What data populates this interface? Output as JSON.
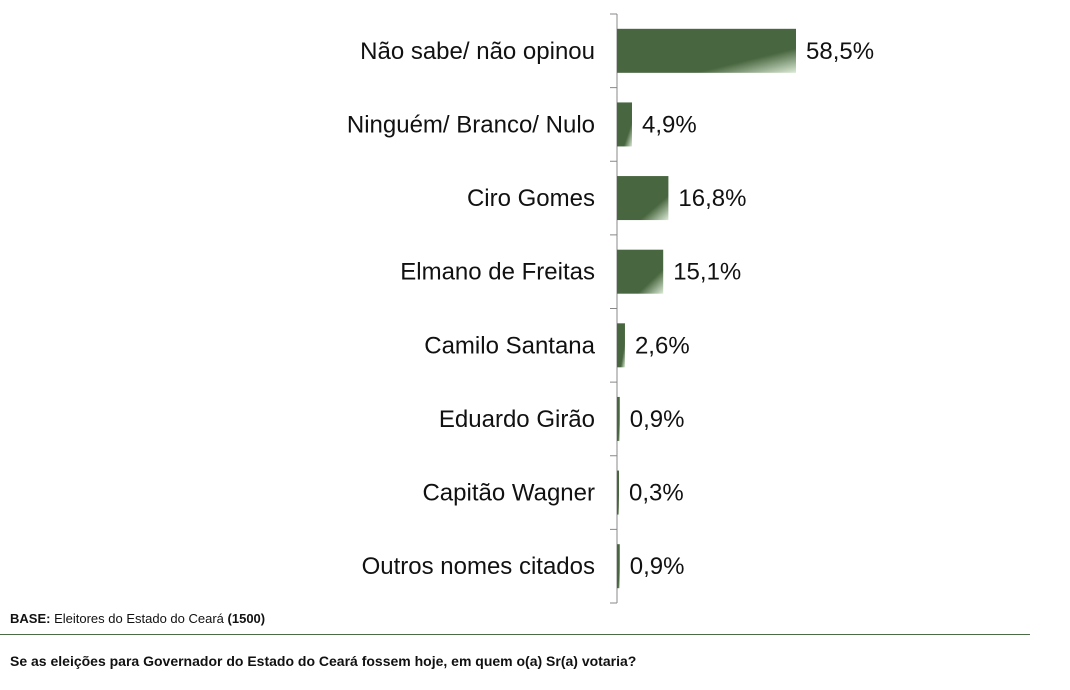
{
  "chart_data": {
    "type": "bar",
    "orientation": "horizontal",
    "categories": [
      "Não sabe/ não opinou",
      "Ninguém/ Branco/ Nulo",
      "Ciro Gomes",
      "Elmano de Freitas",
      "Camilo Santana",
      "Eduardo Girão",
      "Capitão Wagner",
      "Outros nomes citados"
    ],
    "values": [
      58.5,
      4.9,
      16.8,
      15.1,
      2.6,
      0.9,
      0.3,
      0.9
    ],
    "value_labels": [
      "58,5%",
      "4,9%",
      "16,8%",
      "15,1%",
      "2,6%",
      "0,9%",
      "0,3%",
      "0,9%"
    ],
    "xlim": [
      0,
      100
    ],
    "grid": false,
    "colors": {
      "bar_dark": "#48663f",
      "bar_light": "#dcebd6",
      "axis": "#888888"
    }
  },
  "footer": {
    "base_label": "BASE:",
    "base_text": "Eleitores do Estado do Ceará",
    "base_count": "(1500)",
    "question": "Se as eleições para Governador do Estado do Ceará fossem hoje, em quem o(a) Sr(a) votaria?"
  }
}
